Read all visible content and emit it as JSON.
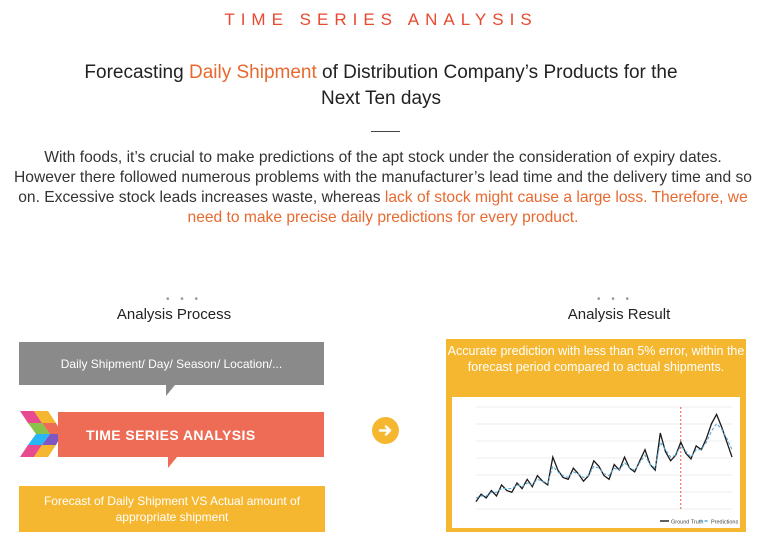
{
  "section_label": "TIME SERIES ANALYSIS",
  "headline": {
    "part1": "Forecasting ",
    "accent": "Daily Shipment",
    "part2": " of Distribution Company’s Products for the",
    "line2": "Next Ten days"
  },
  "paragraph": {
    "plain": "With foods, it’s crucial to make predictions of the apt stock under the consideration of expiry dates. However there followed numerous problems with the manufacturer’s lead time and the delivery time and so on. Excessive stock leads increases waste, whereas ",
    "accent": "lack of stock might cause a large loss. Therefore, we need to make precise daily predictions for every product."
  },
  "process": {
    "dots": "• • •",
    "title": "Analysis Process",
    "input_label": "Daily Shipment/ Day/ Season/ Location/...",
    "method_label": "TIME SERIES ANALYSIS",
    "output_label": "Forecast of Daily Shipment VS Actual amount of appropriate shipment"
  },
  "result": {
    "dots": "• • •",
    "title": "Analysis Result",
    "summary": "Accurate prediction with less than 5% error, within the forecast period compared to actual shipments."
  },
  "icons": {
    "logo": "colored-chevron-logo-icon",
    "arrow": "arrow-right-circle-icon"
  },
  "colors": {
    "accent_red": "#e8492f",
    "accent_orange": "#e8692f",
    "gray": "#8a8a8a",
    "coral": "#ee6b56",
    "amber": "#f6b730"
  },
  "chart_data": {
    "type": "line",
    "x": [
      0,
      1,
      2,
      3,
      4,
      5,
      6,
      7,
      8,
      9,
      10,
      11,
      12,
      13,
      14,
      15,
      16,
      17,
      18,
      19,
      20,
      21,
      22,
      23,
      24,
      25,
      26,
      27,
      28,
      29,
      30,
      31,
      32,
      33,
      34,
      35,
      36,
      37,
      38,
      39,
      40,
      41,
      42,
      43,
      44,
      45,
      46,
      47,
      48,
      49,
      50
    ],
    "series": [
      {
        "name": "Ground Truth",
        "values": [
          38,
          42,
          40,
          44,
          41,
          47,
          44,
          43,
          48,
          45,
          50,
          46,
          52,
          49,
          47,
          62,
          55,
          51,
          50,
          56,
          53,
          49,
          52,
          60,
          57,
          52,
          50,
          58,
          55,
          62,
          56,
          54,
          60,
          66,
          58,
          55,
          75,
          65,
          60,
          63,
          70,
          64,
          61,
          68,
          66,
          72,
          80,
          85,
          78,
          70,
          62
        ]
      },
      {
        "name": "Predictions",
        "values": [
          40,
          41,
          41,
          43,
          43,
          45,
          45,
          45,
          47,
          46,
          48,
          47,
          50,
          49,
          48,
          57,
          54,
          52,
          51,
          54,
          53,
          51,
          52,
          57,
          56,
          53,
          52,
          56,
          55,
          59,
          56,
          55,
          59,
          63,
          58,
          56,
          70,
          66,
          62,
          63,
          68,
          65,
          62,
          66,
          66,
          70,
          76,
          80,
          77,
          72,
          66
        ]
      }
    ],
    "forecast_start_index": 40
  }
}
